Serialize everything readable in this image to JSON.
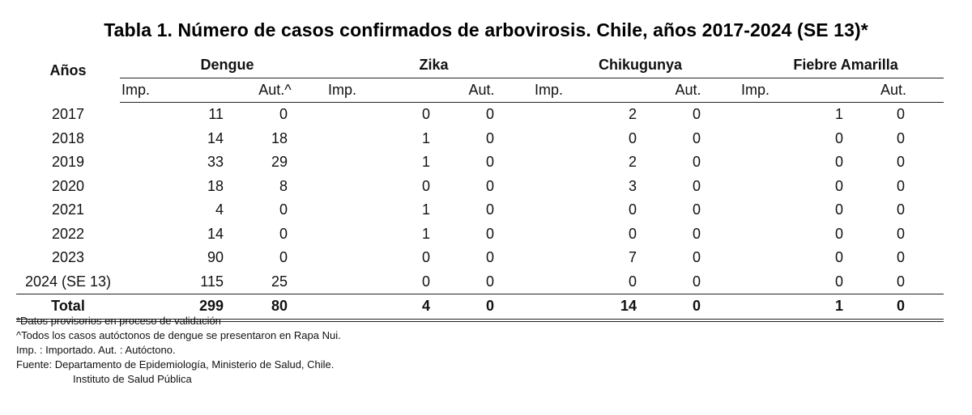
{
  "title": "Tabla 1. Número de casos confirmados de arbovirosis. Chile, años 2017-2024 (SE 13)*",
  "header": {
    "year_label": "Años",
    "groups": [
      "Dengue",
      "Zika",
      "Chikugunya",
      "Fiebre Amarilla"
    ],
    "sub": {
      "imp": "Imp.",
      "aut_dengue": "Aut.^",
      "aut": "Aut."
    }
  },
  "rows": [
    {
      "year": "2017",
      "values": [
        "11",
        "0",
        "0",
        "0",
        "2",
        "0",
        "1",
        "0"
      ]
    },
    {
      "year": "2018",
      "values": [
        "14",
        "18",
        "1",
        "0",
        "0",
        "0",
        "0",
        "0"
      ]
    },
    {
      "year": "2019",
      "values": [
        "33",
        "29",
        "1",
        "0",
        "2",
        "0",
        "0",
        "0"
      ]
    },
    {
      "year": "2020",
      "values": [
        "18",
        "8",
        "0",
        "0",
        "3",
        "0",
        "0",
        "0"
      ]
    },
    {
      "year": "2021",
      "values": [
        "4",
        "0",
        "1",
        "0",
        "0",
        "0",
        "0",
        "0"
      ]
    },
    {
      "year": "2022",
      "values": [
        "14",
        "0",
        "1",
        "0",
        "0",
        "0",
        "0",
        "0"
      ]
    },
    {
      "year": "2023",
      "values": [
        "90",
        "0",
        "0",
        "0",
        "7",
        "0",
        "0",
        "0"
      ]
    },
    {
      "year": "2024 (SE 13)",
      "values": [
        "115",
        "25",
        "0",
        "0",
        "0",
        "0",
        "0",
        "0"
      ]
    }
  ],
  "total": {
    "label": "Total",
    "values": [
      "299",
      "80",
      "4",
      "0",
      "14",
      "0",
      "1",
      "0"
    ]
  },
  "notes": {
    "n1": "*Datos provisorios en proceso de validación",
    "n2": "^Todos los casos autóctonos de dengue se presentaron en Rapa Nui.",
    "n3": "Imp. : Importado.  Aut. : Autóctono.",
    "n4": "Fuente: Departamento de Epidemiología, Ministerio de Salud, Chile.",
    "n5": "Instituto de Salud Pública"
  }
}
